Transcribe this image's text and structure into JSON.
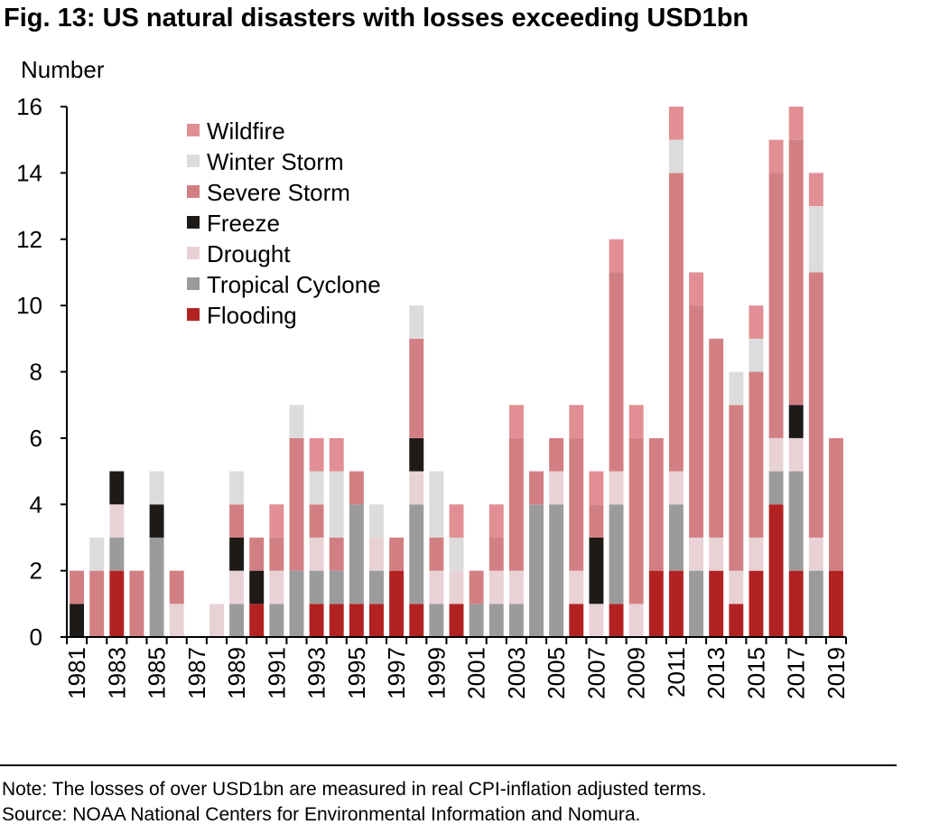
{
  "title": "Fig. 13: US natural disasters with losses exceeding USD1bn",
  "note": "Note: The losses of over USD1bn are measured in real CPI-inflation adjusted terms.",
  "source": "Source: NOAA National Centers for Environmental Information and Nomura.",
  "chart_data": {
    "type": "bar",
    "stacked": true,
    "ylabel": "Number",
    "ylim": [
      0,
      16
    ],
    "yticks": [
      0,
      2,
      4,
      6,
      8,
      10,
      12,
      14,
      16
    ],
    "grid": false,
    "legend_position": "top-left",
    "categories": [
      1981,
      1982,
      1983,
      1984,
      1985,
      1986,
      1987,
      1988,
      1989,
      1990,
      1991,
      1992,
      1993,
      1994,
      1995,
      1996,
      1997,
      1998,
      1999,
      2000,
      2001,
      2002,
      2003,
      2004,
      2005,
      2006,
      2007,
      2008,
      2009,
      2010,
      2011,
      2012,
      2013,
      2014,
      2015,
      2016,
      2017,
      2018,
      2019
    ],
    "xtick_labels": [
      "1981",
      "1983",
      "1985",
      "1987",
      "1989",
      "1991",
      "1993",
      "1995",
      "1997",
      "1999",
      "2001",
      "2003",
      "2005",
      "2007",
      "2009",
      "2011",
      "2013",
      "2015",
      "2017",
      "2019"
    ],
    "series": [
      {
        "name": "Flooding",
        "color": "#b22222",
        "values": [
          0,
          0,
          2,
          0,
          0,
          0,
          0,
          0,
          0,
          1,
          0,
          0,
          1,
          1,
          1,
          1,
          2,
          1,
          0,
          1,
          0,
          0,
          0,
          0,
          0,
          1,
          0,
          1,
          0,
          2,
          2,
          0,
          2,
          1,
          2,
          4,
          2,
          0,
          2
        ]
      },
      {
        "name": "Tropical Cyclone",
        "color": "#9b9b9b",
        "values": [
          0,
          0,
          1,
          0,
          3,
          0,
          0,
          0,
          1,
          0,
          1,
          2,
          1,
          1,
          3,
          1,
          0,
          3,
          1,
          0,
          1,
          1,
          1,
          4,
          4,
          0,
          0,
          3,
          0,
          0,
          2,
          2,
          0,
          0,
          0,
          1,
          3,
          2,
          0
        ]
      },
      {
        "name": "Drought",
        "color": "#e8d2d5",
        "values": [
          0,
          0,
          1,
          0,
          0,
          1,
          0,
          1,
          1,
          0,
          1,
          0,
          1,
          0,
          0,
          1,
          0,
          1,
          1,
          1,
          0,
          1,
          1,
          0,
          1,
          1,
          1,
          1,
          1,
          0,
          1,
          1,
          1,
          1,
          1,
          1,
          1,
          1,
          0
        ]
      },
      {
        "name": "Freeze",
        "color": "#1d1a17",
        "values": [
          1,
          0,
          1,
          0,
          1,
          0,
          0,
          0,
          1,
          1,
          0,
          0,
          0,
          0,
          0,
          0,
          0,
          1,
          0,
          0,
          0,
          0,
          0,
          0,
          0,
          0,
          2,
          0,
          0,
          0,
          0,
          0,
          0,
          0,
          0,
          0,
          1,
          0,
          0
        ]
      },
      {
        "name": "Severe Storm",
        "color": "#d27f83",
        "values": [
          1,
          2,
          0,
          2,
          0,
          1,
          0,
          0,
          1,
          1,
          1,
          4,
          1,
          1,
          1,
          0,
          1,
          3,
          1,
          0,
          1,
          1,
          4,
          1,
          1,
          4,
          1,
          6,
          5,
          4,
          9,
          7,
          6,
          5,
          5,
          8,
          8,
          8,
          4
        ]
      },
      {
        "name": "Winter Storm",
        "color": "#dcdcdc",
        "values": [
          0,
          1,
          0,
          0,
          1,
          0,
          0,
          0,
          1,
          0,
          0,
          1,
          1,
          2,
          0,
          1,
          0,
          1,
          2,
          1,
          0,
          0,
          0,
          0,
          0,
          0,
          0,
          0,
          0,
          0,
          1,
          0,
          0,
          1,
          1,
          0,
          0,
          2,
          0
        ]
      },
      {
        "name": "Wildfire",
        "color": "#e18e95",
        "values": [
          0,
          0,
          0,
          0,
          0,
          0,
          0,
          0,
          0,
          0,
          1,
          0,
          1,
          1,
          0,
          0,
          0,
          0,
          0,
          1,
          0,
          1,
          1,
          0,
          0,
          1,
          1,
          1,
          1,
          0,
          1,
          1,
          0,
          0,
          1,
          1,
          1,
          1,
          0
        ]
      }
    ]
  }
}
